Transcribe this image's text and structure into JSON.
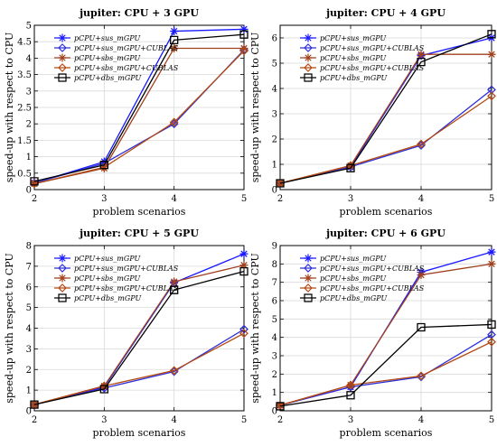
{
  "colors": {
    "sus_mGPU": "#1a1aff",
    "sus_mGPU_CUBLAS": "#2f2fd8",
    "sbs_mGPU": "#a0401e",
    "sbs_mGPU_CUBLAS": "#b34a12",
    "dbs_mGPU": "#000000",
    "grid": "#d9d9d9"
  },
  "markers": {
    "sus_mGPU": "star",
    "sus_mGPU_CUBLAS": "diamond",
    "sbs_mGPU": "star",
    "sbs_mGPU_CUBLAS": "diamond",
    "dbs_mGPU": "square"
  },
  "chart_data": [
    {
      "type": "line",
      "title": "jupiter: CPU + 3 GPU",
      "xlabel": "problem scenarios",
      "ylabel": "speed-up with respect to CPU",
      "x": [
        2,
        3,
        4,
        5
      ],
      "xlim": [
        2,
        5
      ],
      "ylim": [
        0,
        5
      ],
      "yticks": [
        0,
        0.5,
        1,
        1.5,
        2,
        2.5,
        3,
        3.5,
        4,
        4.5,
        5
      ],
      "ytick_labels": [
        "0",
        "0.5",
        "1",
        "1.5",
        "2",
        "2.5",
        "3",
        "3.5",
        "4",
        "4.5",
        "5"
      ],
      "grid": true,
      "legend_position": "top-left",
      "series": [
        {
          "name": "pCPU+sus_mGPU",
          "key": "sus_mGPU",
          "values": [
            0.2,
            0.85,
            4.82,
            4.88
          ]
        },
        {
          "name": "pCPU+sus_mGPU+CUBLAS",
          "key": "sus_mGPU_CUBLAS",
          "values": [
            0.2,
            0.8,
            2.0,
            4.25
          ]
        },
        {
          "name": "pCPU+sbs_mGPU",
          "key": "sbs_mGPU",
          "values": [
            0.18,
            0.65,
            4.3,
            4.3
          ]
        },
        {
          "name": "pCPU+sbs_mGPU+CUBLAS",
          "key": "sbs_mGPU_CUBLAS",
          "values": [
            0.18,
            0.68,
            2.05,
            4.22
          ]
        },
        {
          "name": "pCPU+dbs_mGPU",
          "key": "dbs_mGPU",
          "values": [
            0.25,
            0.75,
            4.55,
            4.72
          ]
        }
      ]
    },
    {
      "type": "line",
      "title": "jupiter: CPU + 4 GPU",
      "xlabel": "problem scenarios",
      "ylabel": "speed-up with respect to CPU",
      "x": [
        2,
        3,
        4,
        5
      ],
      "xlim": [
        2,
        5
      ],
      "ylim": [
        0,
        6.5
      ],
      "yticks": [
        0,
        1,
        2,
        3,
        4,
        5,
        6
      ],
      "ytick_labels": [
        "0",
        "1",
        "2",
        "3",
        "4",
        "5",
        "6"
      ],
      "grid": true,
      "legend_position": "top-left",
      "series": [
        {
          "name": "pCPU+sus_mGPU",
          "key": "sus_mGPU",
          "values": [
            0.25,
            0.9,
            5.3,
            6.0
          ]
        },
        {
          "name": "pCPU+sus_mGPU+CUBLAS",
          "key": "sus_mGPU_CUBLAS",
          "values": [
            0.25,
            0.9,
            1.75,
            3.95
          ]
        },
        {
          "name": "pCPU+sbs_mGPU",
          "key": "sbs_mGPU",
          "values": [
            0.25,
            0.95,
            5.35,
            5.35
          ]
        },
        {
          "name": "pCPU+sbs_mGPU+CUBLAS",
          "key": "sbs_mGPU_CUBLAS",
          "values": [
            0.25,
            0.95,
            1.8,
            3.7
          ]
        },
        {
          "name": "pCPU+dbs_mGPU",
          "key": "dbs_mGPU",
          "values": [
            0.25,
            0.85,
            5.05,
            6.15
          ]
        }
      ]
    },
    {
      "type": "line",
      "title": "jupiter: CPU + 5 GPU",
      "xlabel": "problem scenarios",
      "ylabel": "speed-up with respect to CPU",
      "x": [
        2,
        3,
        4,
        5
      ],
      "xlim": [
        2,
        5
      ],
      "ylim": [
        0,
        8
      ],
      "yticks": [
        0,
        1,
        2,
        3,
        4,
        5,
        6,
        7,
        8
      ],
      "ytick_labels": [
        "0",
        "1",
        "2",
        "3",
        "4",
        "5",
        "6",
        "7",
        "8"
      ],
      "grid": true,
      "legend_position": "top-left",
      "series": [
        {
          "name": "pCPU+sus_mGPU",
          "key": "sus_mGPU",
          "values": [
            0.3,
            1.15,
            6.2,
            7.6
          ]
        },
        {
          "name": "pCPU+sus_mGPU+CUBLAS",
          "key": "sus_mGPU_CUBLAS",
          "values": [
            0.3,
            1.1,
            1.9,
            3.95
          ]
        },
        {
          "name": "pCPU+sbs_mGPU",
          "key": "sbs_mGPU",
          "values": [
            0.3,
            1.2,
            6.25,
            7.05
          ]
        },
        {
          "name": "pCPU+sbs_mGPU+CUBLAS",
          "key": "sbs_mGPU_CUBLAS",
          "values": [
            0.3,
            1.2,
            1.95,
            3.75
          ]
        },
        {
          "name": "pCPU+dbs_mGPU",
          "key": "dbs_mGPU",
          "values": [
            0.3,
            1.05,
            5.85,
            6.75
          ]
        }
      ]
    },
    {
      "type": "line",
      "title": "jupiter: CPU + 6 GPU",
      "xlabel": "problem scenarios",
      "ylabel": "speed-up with respect to CPU",
      "x": [
        2,
        3,
        4,
        5
      ],
      "xlim": [
        2,
        5
      ],
      "ylim": [
        0,
        9
      ],
      "yticks": [
        0,
        1,
        2,
        3,
        4,
        5,
        6,
        7,
        8,
        9
      ],
      "ytick_labels": [
        "0",
        "1",
        "2",
        "3",
        "4",
        "5",
        "6",
        "7",
        "8",
        "9"
      ],
      "grid": true,
      "legend_position": "top-left",
      "series": [
        {
          "name": "pCPU+sus_mGPU",
          "key": "sus_mGPU",
          "values": [
            0.3,
            1.3,
            7.55,
            8.65
          ]
        },
        {
          "name": "pCPU+sus_mGPU+CUBLAS",
          "key": "sus_mGPU_CUBLAS",
          "values": [
            0.3,
            1.3,
            1.85,
            4.15
          ]
        },
        {
          "name": "pCPU+sbs_mGPU",
          "key": "sbs_mGPU",
          "values": [
            0.3,
            1.4,
            7.4,
            8.0
          ]
        },
        {
          "name": "pCPU+sbs_mGPU+CUBLAS",
          "key": "sbs_mGPU_CUBLAS",
          "values": [
            0.3,
            1.4,
            1.9,
            3.75
          ]
        },
        {
          "name": "pCPU+dbs_mGPU",
          "key": "dbs_mGPU",
          "values": [
            0.25,
            0.85,
            4.55,
            4.7
          ]
        }
      ]
    }
  ]
}
